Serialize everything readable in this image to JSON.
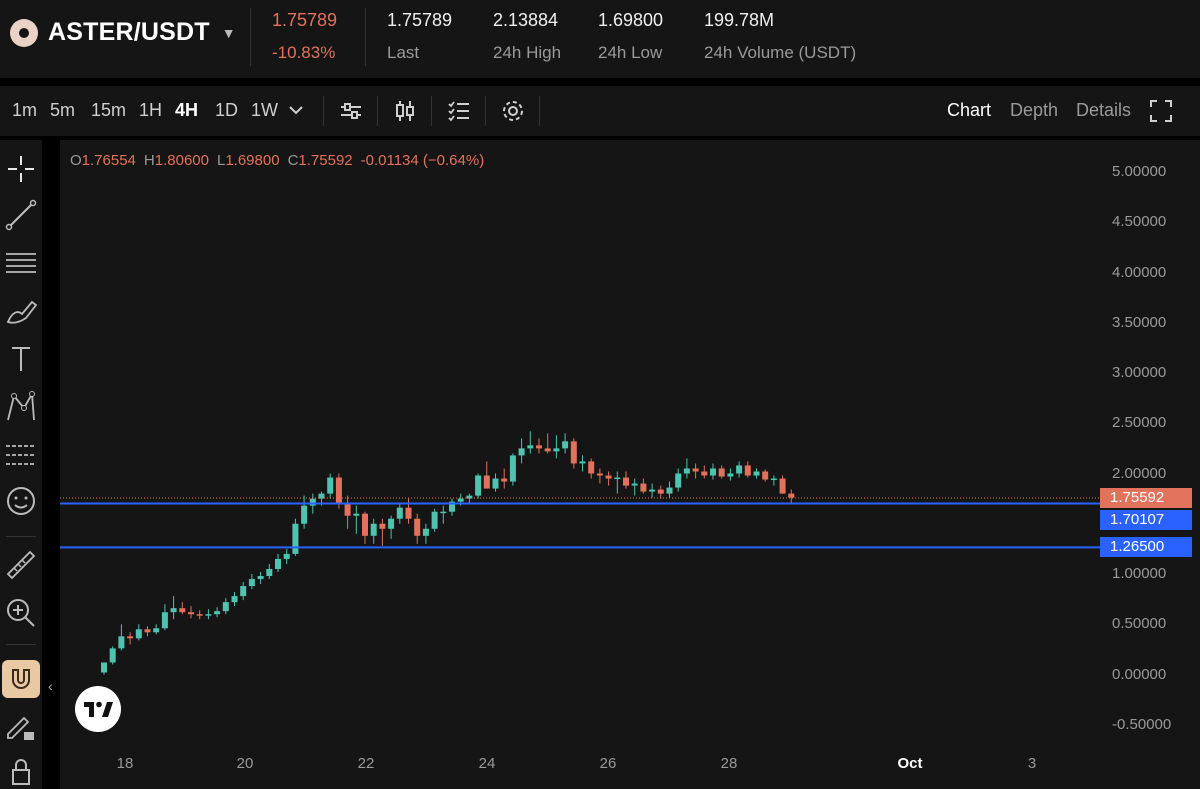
{
  "pair": {
    "name": "ASTER/USDT"
  },
  "stats": {
    "price": "1.75789",
    "change": "-10.83%",
    "last_value": "1.75789",
    "last_label": "Last",
    "high_value": "2.13884",
    "high_label": "24h High",
    "low_value": "1.69800",
    "low_label": "24h Low",
    "volume_value": "199.78M",
    "volume_label": "24h Volume (USDT)"
  },
  "timeframes": [
    "1m",
    "5m",
    "15m",
    "1H",
    "4H",
    "1D",
    "1W"
  ],
  "active_timeframe": "4H",
  "view_tabs": {
    "chart": "Chart",
    "depth": "Depth",
    "details": "Details"
  },
  "ohlc": {
    "o_label": "O",
    "o": "1.76554",
    "h_label": "H",
    "h": "1.80600",
    "l_label": "L",
    "l": "1.69800",
    "c_label": "C",
    "c": "1.75592",
    "change": "-0.01134 (−0.64%)"
  },
  "colors": {
    "up": "#4fc3b0",
    "down": "#e2725b",
    "accent": "#2962ff",
    "background": "#151515"
  },
  "chart_data": {
    "type": "candlestick",
    "y_ticks": [
      "5.00000",
      "4.50000",
      "4.00000",
      "3.50000",
      "3.00000",
      "2.50000",
      "2.00000",
      "1.50000",
      "1.00000",
      "0.50000",
      "0.00000",
      "-0.50000"
    ],
    "ylim": [
      -0.6,
      5.25
    ],
    "x_ticks": [
      "18",
      "20",
      "22",
      "24",
      "26",
      "28",
      "Oct",
      "3"
    ],
    "price_tags": [
      {
        "label": "1.75592",
        "value": 1.75592,
        "color": "#e2725b"
      },
      {
        "label": "1.70107",
        "value": 1.70107,
        "color": "#2962ff"
      },
      {
        "label": "1.26500",
        "value": 1.265,
        "color": "#2962ff"
      }
    ],
    "horizontal_lines": [
      1.70107,
      1.265
    ],
    "candles": [
      {
        "o": 0.02,
        "h": 0.12,
        "l": 0.0,
        "c": 0.12
      },
      {
        "o": 0.12,
        "h": 0.28,
        "l": 0.1,
        "c": 0.26
      },
      {
        "o": 0.26,
        "h": 0.5,
        "l": 0.24,
        "c": 0.38
      },
      {
        "o": 0.38,
        "h": 0.42,
        "l": 0.3,
        "c": 0.36
      },
      {
        "o": 0.36,
        "h": 0.5,
        "l": 0.34,
        "c": 0.45
      },
      {
        "o": 0.45,
        "h": 0.48,
        "l": 0.38,
        "c": 0.42
      },
      {
        "o": 0.42,
        "h": 0.5,
        "l": 0.4,
        "c": 0.46
      },
      {
        "o": 0.46,
        "h": 0.7,
        "l": 0.44,
        "c": 0.62
      },
      {
        "o": 0.62,
        "h": 0.78,
        "l": 0.55,
        "c": 0.66
      },
      {
        "o": 0.66,
        "h": 0.72,
        "l": 0.6,
        "c": 0.62
      },
      {
        "o": 0.62,
        "h": 0.68,
        "l": 0.56,
        "c": 0.6
      },
      {
        "o": 0.6,
        "h": 0.64,
        "l": 0.55,
        "c": 0.59
      },
      {
        "o": 0.59,
        "h": 0.65,
        "l": 0.55,
        "c": 0.6
      },
      {
        "o": 0.6,
        "h": 0.67,
        "l": 0.57,
        "c": 0.63
      },
      {
        "o": 0.63,
        "h": 0.76,
        "l": 0.6,
        "c": 0.72
      },
      {
        "o": 0.72,
        "h": 0.82,
        "l": 0.68,
        "c": 0.78
      },
      {
        "o": 0.78,
        "h": 0.92,
        "l": 0.74,
        "c": 0.88
      },
      {
        "o": 0.88,
        "h": 1.0,
        "l": 0.85,
        "c": 0.95
      },
      {
        "o": 0.95,
        "h": 1.02,
        "l": 0.9,
        "c": 0.98
      },
      {
        "o": 0.98,
        "h": 1.1,
        "l": 0.95,
        "c": 1.05
      },
      {
        "o": 1.05,
        "h": 1.2,
        "l": 1.02,
        "c": 1.15
      },
      {
        "o": 1.15,
        "h": 1.25,
        "l": 1.1,
        "c": 1.2
      },
      {
        "o": 1.2,
        "h": 1.55,
        "l": 1.18,
        "c": 1.5
      },
      {
        "o": 1.5,
        "h": 1.78,
        "l": 1.45,
        "c": 1.68
      },
      {
        "o": 1.68,
        "h": 1.8,
        "l": 1.6,
        "c": 1.75
      },
      {
        "o": 1.75,
        "h": 1.82,
        "l": 1.68,
        "c": 1.8
      },
      {
        "o": 1.8,
        "h": 2.0,
        "l": 1.75,
        "c": 1.96
      },
      {
        "o": 1.96,
        "h": 2.0,
        "l": 1.65,
        "c": 1.7
      },
      {
        "o": 1.7,
        "h": 1.78,
        "l": 1.45,
        "c": 1.58
      },
      {
        "o": 1.58,
        "h": 1.68,
        "l": 1.4,
        "c": 1.6
      },
      {
        "o": 1.6,
        "h": 1.62,
        "l": 1.3,
        "c": 1.38
      },
      {
        "o": 1.38,
        "h": 1.55,
        "l": 1.3,
        "c": 1.5
      },
      {
        "o": 1.5,
        "h": 1.55,
        "l": 1.28,
        "c": 1.45
      },
      {
        "o": 1.45,
        "h": 1.58,
        "l": 1.35,
        "c": 1.55
      },
      {
        "o": 1.55,
        "h": 1.7,
        "l": 1.5,
        "c": 1.66
      },
      {
        "o": 1.66,
        "h": 1.75,
        "l": 1.5,
        "c": 1.55
      },
      {
        "o": 1.55,
        "h": 1.6,
        "l": 1.3,
        "c": 1.38
      },
      {
        "o": 1.38,
        "h": 1.5,
        "l": 1.3,
        "c": 1.45
      },
      {
        "o": 1.45,
        "h": 1.65,
        "l": 1.42,
        "c": 1.62
      },
      {
        "o": 1.62,
        "h": 1.68,
        "l": 1.5,
        "c": 1.62
      },
      {
        "o": 1.62,
        "h": 1.75,
        "l": 1.58,
        "c": 1.72
      },
      {
        "o": 1.72,
        "h": 1.8,
        "l": 1.68,
        "c": 1.75
      },
      {
        "o": 1.75,
        "h": 1.8,
        "l": 1.7,
        "c": 1.78
      },
      {
        "o": 1.78,
        "h": 2.0,
        "l": 1.75,
        "c": 1.98
      },
      {
        "o": 1.98,
        "h": 2.12,
        "l": 1.9,
        "c": 1.85
      },
      {
        "o": 1.85,
        "h": 2.0,
        "l": 1.82,
        "c": 1.95
      },
      {
        "o": 1.95,
        "h": 2.05,
        "l": 1.85,
        "c": 1.92
      },
      {
        "o": 1.92,
        "h": 2.2,
        "l": 1.88,
        "c": 2.18
      },
      {
        "o": 2.18,
        "h": 2.35,
        "l": 2.1,
        "c": 2.25
      },
      {
        "o": 2.25,
        "h": 2.42,
        "l": 2.2,
        "c": 2.28
      },
      {
        "o": 2.28,
        "h": 2.35,
        "l": 2.2,
        "c": 2.25
      },
      {
        "o": 2.25,
        "h": 2.4,
        "l": 2.2,
        "c": 2.22
      },
      {
        "o": 2.22,
        "h": 2.38,
        "l": 2.15,
        "c": 2.25
      },
      {
        "o": 2.25,
        "h": 2.4,
        "l": 2.2,
        "c": 2.32
      },
      {
        "o": 2.32,
        "h": 2.35,
        "l": 2.05,
        "c": 2.1
      },
      {
        "o": 2.1,
        "h": 2.18,
        "l": 2.02,
        "c": 2.12
      },
      {
        "o": 2.12,
        "h": 2.15,
        "l": 1.95,
        "c": 2.0
      },
      {
        "o": 2.0,
        "h": 2.05,
        "l": 1.9,
        "c": 1.98
      },
      {
        "o": 1.98,
        "h": 2.02,
        "l": 1.88,
        "c": 1.95
      },
      {
        "o": 1.95,
        "h": 2.02,
        "l": 1.8,
        "c": 1.96
      },
      {
        "o": 1.96,
        "h": 2.02,
        "l": 1.85,
        "c": 1.88
      },
      {
        "o": 1.88,
        "h": 1.95,
        "l": 1.78,
        "c": 1.9
      },
      {
        "o": 1.9,
        "h": 1.95,
        "l": 1.8,
        "c": 1.82
      },
      {
        "o": 1.82,
        "h": 1.9,
        "l": 1.76,
        "c": 1.84
      },
      {
        "o": 1.84,
        "h": 1.88,
        "l": 1.75,
        "c": 1.8
      },
      {
        "o": 1.8,
        "h": 1.92,
        "l": 1.76,
        "c": 1.86
      },
      {
        "o": 1.86,
        "h": 2.05,
        "l": 1.82,
        "c": 2.0
      },
      {
        "o": 2.0,
        "h": 2.15,
        "l": 1.95,
        "c": 2.05
      },
      {
        "o": 2.05,
        "h": 2.1,
        "l": 1.95,
        "c": 2.02
      },
      {
        "o": 2.02,
        "h": 2.08,
        "l": 1.95,
        "c": 1.98
      },
      {
        "o": 1.98,
        "h": 2.1,
        "l": 1.94,
        "c": 2.05
      },
      {
        "o": 2.05,
        "h": 2.08,
        "l": 1.95,
        "c": 1.97
      },
      {
        "o": 1.97,
        "h": 2.05,
        "l": 1.93,
        "c": 2.0
      },
      {
        "o": 2.0,
        "h": 2.12,
        "l": 1.96,
        "c": 2.08
      },
      {
        "o": 2.08,
        "h": 2.12,
        "l": 1.96,
        "c": 1.98
      },
      {
        "o": 1.98,
        "h": 2.05,
        "l": 1.95,
        "c": 2.02
      },
      {
        "o": 2.02,
        "h": 2.04,
        "l": 1.92,
        "c": 1.94
      },
      {
        "o": 1.94,
        "h": 1.98,
        "l": 1.88,
        "c": 1.95
      },
      {
        "o": 1.95,
        "h": 1.98,
        "l": 1.8,
        "c": 1.8
      },
      {
        "o": 1.8,
        "h": 1.84,
        "l": 1.7,
        "c": 1.76
      }
    ]
  }
}
